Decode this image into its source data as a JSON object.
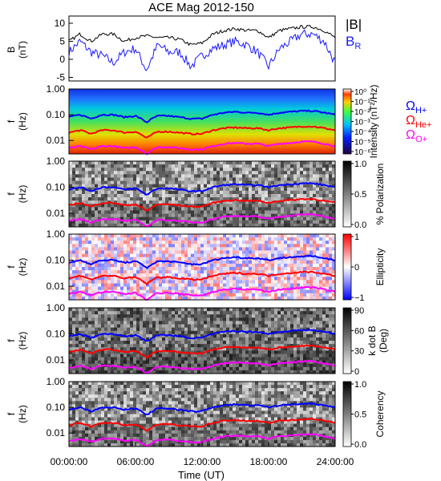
{
  "title": "ACE Mag 2012-150",
  "xlabel": "Time (UT)",
  "x_ticks": [
    "00:00:00",
    "06:00:00",
    "12:00:00",
    "18:00:00",
    "24:00:00"
  ],
  "freq_ticks": [
    "1.00",
    "0.10",
    "0.01"
  ],
  "freq_label_1": "f",
  "freq_label_2": "(Hz)",
  "legend": {
    "B_total": "|B|",
    "B_R_main": "B",
    "B_R_sub": "R",
    "gyro_H_main": "Ω",
    "gyro_H_sub": "H+",
    "gyro_He_main": "Ω",
    "gyro_He_sub": "He+",
    "gyro_O_main": "Ω",
    "gyro_O_sub": "O+"
  },
  "colors": {
    "B_total": "#000000",
    "B_R": "#1a1aff",
    "gyro_H": "#0000ff",
    "gyro_He": "#ff0000",
    "gyro_O": "#ff00ff"
  },
  "chart_data": [
    {
      "type": "line",
      "panel": "magnetic-field",
      "ylabel_1": "B",
      "ylabel_2": "(nT)",
      "ylim": [
        -6,
        12
      ],
      "yticks": [
        "10",
        "5",
        "0",
        "-5"
      ],
      "x_hours": [
        0,
        1,
        2,
        3,
        4,
        5,
        6,
        7,
        8,
        9,
        10,
        11,
        12,
        13,
        14,
        15,
        16,
        17,
        18,
        19,
        20,
        21,
        22,
        23,
        24
      ],
      "series": [
        {
          "name": "|B|",
          "values": [
            5,
            7,
            5,
            7,
            7,
            5,
            6,
            6.5,
            6,
            6,
            5.5,
            4,
            4.5,
            7,
            8,
            8.5,
            8,
            8,
            6,
            8,
            8.5,
            9,
            9,
            8,
            6
          ]
        },
        {
          "name": "BR",
          "values": [
            2,
            5,
            2,
            1,
            -1,
            2,
            3,
            -3,
            4,
            2,
            2,
            -2,
            1,
            3,
            4,
            5,
            4,
            2,
            -2,
            3,
            5,
            7,
            7,
            5,
            -1
          ]
        }
      ]
    },
    {
      "type": "heatmap",
      "panel": "intensity",
      "colorbar_label": "Intensity (nT²/Hz)",
      "colorbar_ticks": [
        "10⁰",
        "10⁻¹",
        "10⁻²",
        "10⁻³",
        "10⁻⁴",
        "10⁻⁵",
        "10⁻⁶"
      ],
      "ylim": [
        0.003,
        1.0
      ],
      "yscale": "log"
    },
    {
      "type": "heatmap",
      "panel": "polarization",
      "colorbar_label": "% Polarization",
      "colorbar_ticks": [
        "1.0",
        "0.5",
        "0.0"
      ],
      "ylim": [
        0.003,
        1.0
      ],
      "yscale": "log"
    },
    {
      "type": "heatmap",
      "panel": "ellipticity",
      "colorbar_label": "Ellipticity",
      "colorbar_ticks": [
        "1",
        "0",
        "−1"
      ],
      "ylim": [
        0.003,
        1.0
      ],
      "yscale": "log"
    },
    {
      "type": "heatmap",
      "panel": "k-dot-b",
      "colorbar_label_1": "k dot B",
      "colorbar_label_2": "(Deg)",
      "colorbar_ticks": [
        "90",
        "60",
        "30",
        "0"
      ],
      "ylim": [
        0.003,
        1.0
      ],
      "yscale": "log"
    },
    {
      "type": "heatmap",
      "panel": "coherency",
      "colorbar_label": "Coherency",
      "colorbar_ticks": [
        "1.0",
        "0.5",
        "0.0"
      ],
      "ylim": [
        0.003,
        1.0
      ],
      "yscale": "log"
    },
    {
      "type": "line",
      "panel": "gyrofrequency-overlay",
      "x_hours": [
        0,
        1,
        2,
        3,
        4,
        5,
        6,
        7,
        8,
        9,
        10,
        11,
        12,
        13,
        14,
        15,
        16,
        17,
        18,
        19,
        20,
        21,
        22,
        23,
        24
      ],
      "series": [
        {
          "name": "ΩH+",
          "values": [
            0.08,
            0.1,
            0.07,
            0.1,
            0.1,
            0.08,
            0.09,
            0.05,
            0.09,
            0.09,
            0.08,
            0.07,
            0.07,
            0.1,
            0.12,
            0.13,
            0.12,
            0.12,
            0.1,
            0.12,
            0.13,
            0.14,
            0.14,
            0.12,
            0.1
          ]
        },
        {
          "name": "ΩHe+",
          "values": [
            0.02,
            0.025,
            0.018,
            0.025,
            0.025,
            0.02,
            0.022,
            0.012,
            0.022,
            0.022,
            0.02,
            0.018,
            0.018,
            0.025,
            0.03,
            0.032,
            0.03,
            0.03,
            0.025,
            0.03,
            0.032,
            0.035,
            0.035,
            0.03,
            0.025
          ]
        },
        {
          "name": "ΩO+",
          "values": [
            0.005,
            0.006,
            0.0045,
            0.006,
            0.006,
            0.005,
            0.0055,
            0.003,
            0.0055,
            0.0055,
            0.005,
            0.0045,
            0.0045,
            0.006,
            0.0075,
            0.008,
            0.0075,
            0.0075,
            0.006,
            0.0075,
            0.008,
            0.009,
            0.009,
            0.0075,
            0.006
          ]
        }
      ]
    }
  ]
}
